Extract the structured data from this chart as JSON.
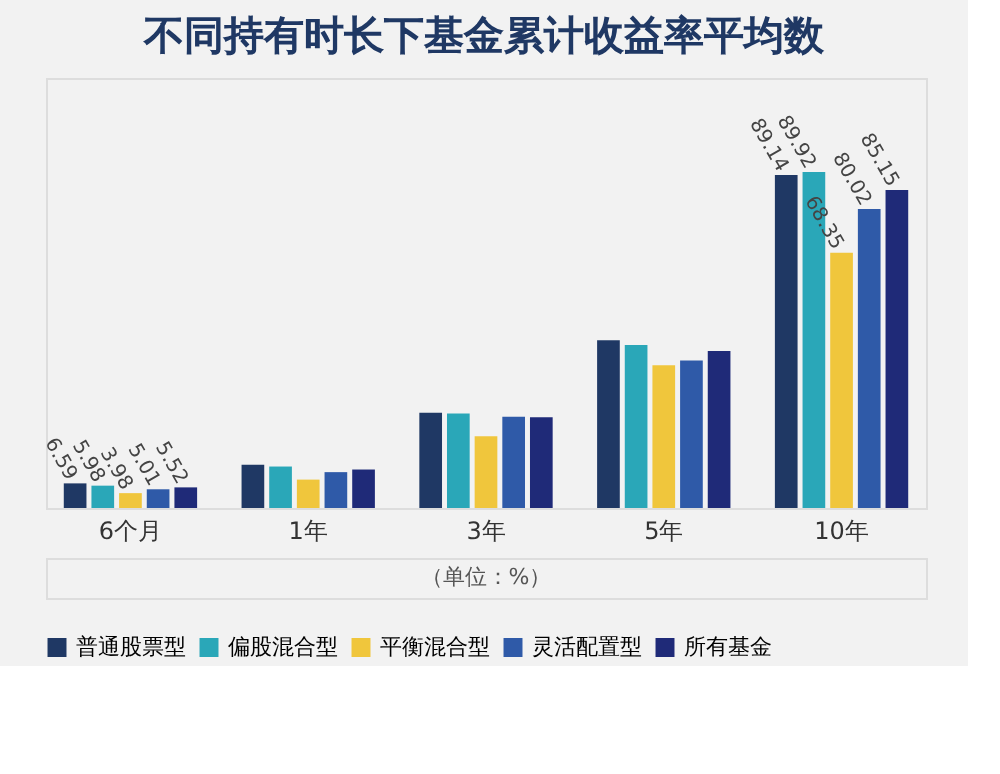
{
  "chart_data": {
    "type": "bar",
    "title": "不同持有时长下基金累计收益率平均数",
    "categories": [
      "6个月",
      "1年",
      "3年",
      "5年",
      "10年"
    ],
    "series": [
      {
        "name": "普通股票型",
        "color": "#1f3864",
        "values": [
          6.59,
          11.6,
          25.5,
          44.9,
          89.14
        ],
        "value_labels": [
          "6.59",
          null,
          null,
          null,
          "89.14"
        ]
      },
      {
        "name": "偏股混合型",
        "color": "#2aa7b8",
        "values": [
          5.98,
          11.1,
          25.3,
          43.6,
          89.92
        ],
        "value_labels": [
          "5.98",
          null,
          null,
          null,
          "89.92"
        ]
      },
      {
        "name": "平衡混合型",
        "color": "#f0c63c",
        "values": [
          3.98,
          7.6,
          19.2,
          38.2,
          68.35
        ],
        "value_labels": [
          "3.98",
          null,
          null,
          null,
          "68.35"
        ]
      },
      {
        "name": "灵活配置型",
        "color": "#2f5aa8",
        "values": [
          5.01,
          9.6,
          24.4,
          39.5,
          80.02
        ],
        "value_labels": [
          "5.01",
          null,
          null,
          null,
          "80.02"
        ]
      },
      {
        "name": "所有基金",
        "color": "#1f2a78",
        "values": [
          5.52,
          10.3,
          24.3,
          42.0,
          85.15
        ],
        "value_labels": [
          "5.52",
          null,
          null,
          null,
          "85.15"
        ]
      }
    ],
    "legend": "bottom",
    "annotations": [
      "（单位：%）"
    ]
  }
}
